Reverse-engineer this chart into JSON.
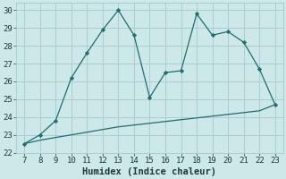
{
  "xlabel": "Humidex (Indice chaleur)",
  "background_color": "#cce8e8",
  "grid_color": "#aacece",
  "line_color": "#1e6e6e",
  "marker_color": "#1e6e6e",
  "xlim": [
    6.5,
    23.5
  ],
  "ylim": [
    22,
    30.4
  ],
  "xticks": [
    7,
    8,
    9,
    10,
    11,
    12,
    13,
    14,
    15,
    16,
    17,
    18,
    19,
    20,
    21,
    22,
    23
  ],
  "yticks": [
    22,
    23,
    24,
    25,
    26,
    27,
    28,
    29,
    30
  ],
  "line1_x": [
    7,
    8,
    9,
    10,
    11,
    12,
    13,
    14,
    15,
    16,
    17,
    18,
    19,
    20,
    21,
    22,
    23
  ],
  "line1_y": [
    22.5,
    23.0,
    23.8,
    26.2,
    27.6,
    28.9,
    30.0,
    28.6,
    25.1,
    26.5,
    26.6,
    29.8,
    28.6,
    28.8,
    28.2,
    26.7,
    24.7
  ],
  "line2_x": [
    7,
    8,
    9,
    10,
    11,
    12,
    13,
    14,
    15,
    16,
    17,
    18,
    19,
    20,
    21,
    22,
    23
  ],
  "line2_y": [
    22.5,
    22.7,
    22.85,
    23.0,
    23.15,
    23.3,
    23.45,
    23.55,
    23.65,
    23.75,
    23.85,
    23.95,
    24.05,
    24.15,
    24.25,
    24.35,
    24.7
  ],
  "tick_fontsize": 6.5,
  "label_fontsize": 7.5,
  "font_color": "#1a3a3a"
}
